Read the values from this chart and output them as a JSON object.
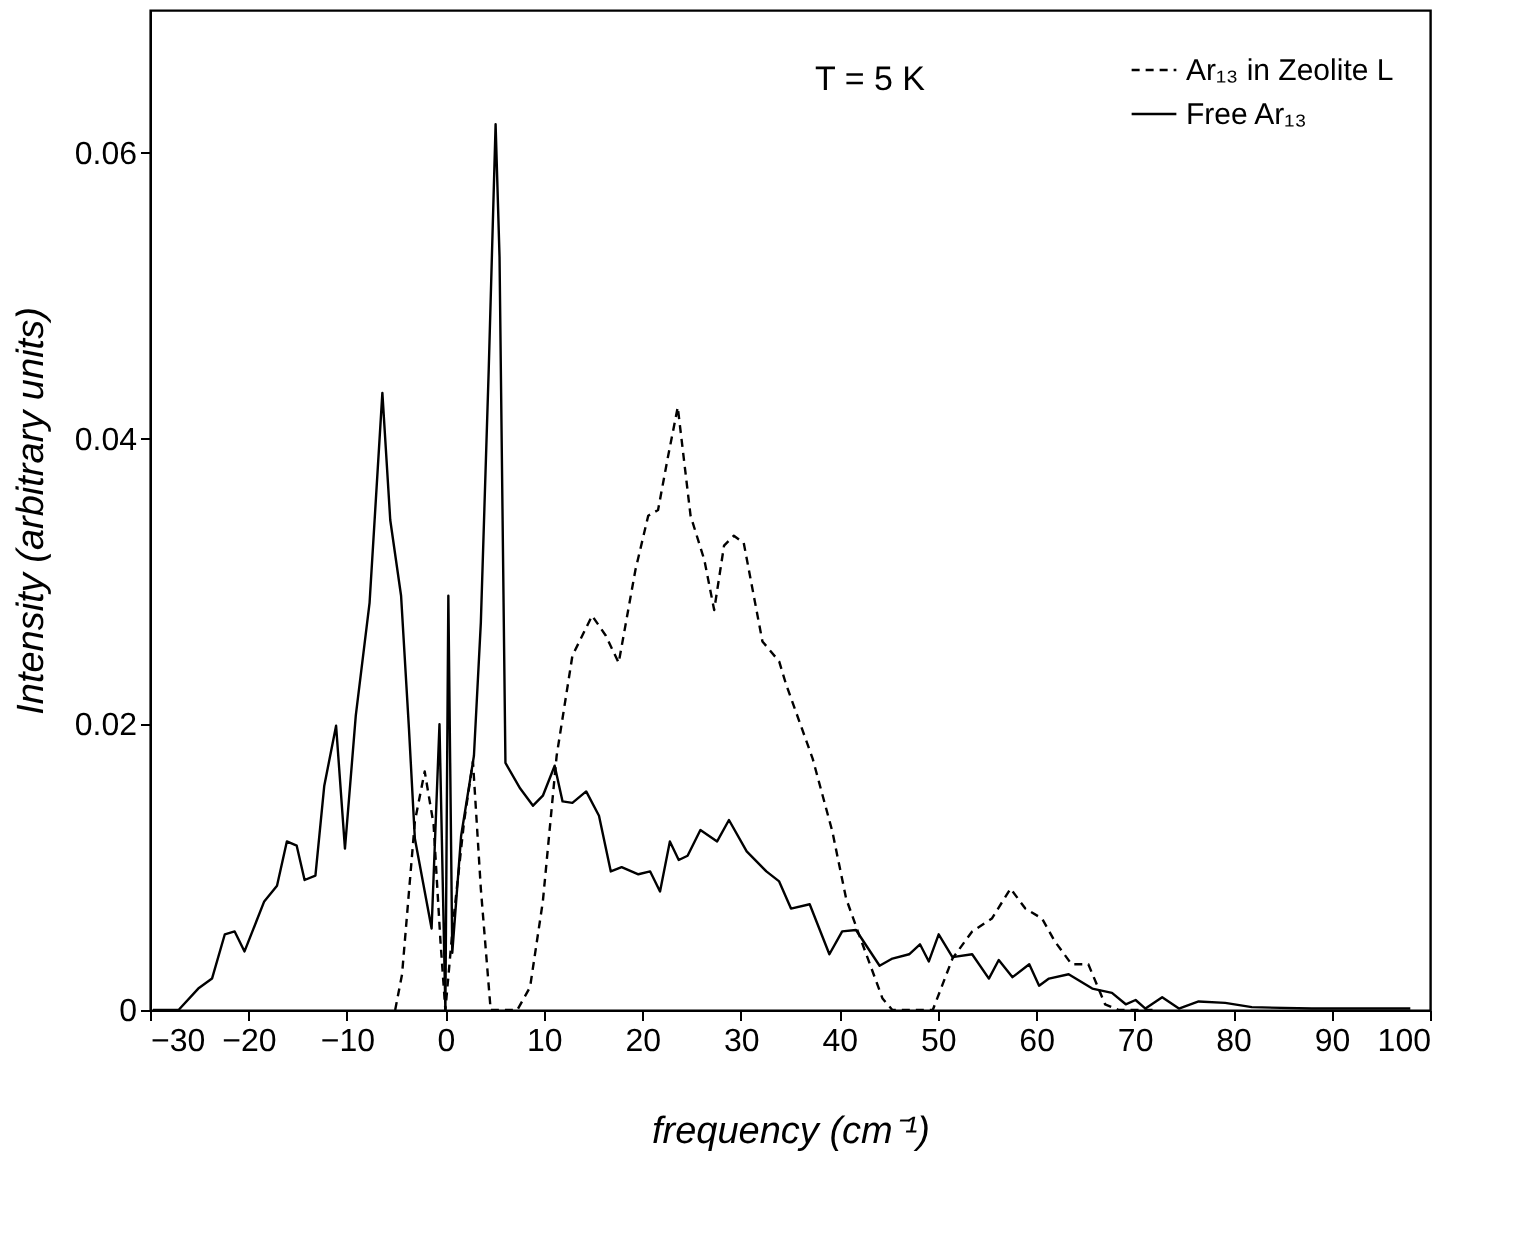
{
  "chart_data": {
    "type": "line",
    "xlabel": "frequency (cm⁻¹)",
    "ylabel": "Intensity (arbitrary units)",
    "annotations": [
      "T = 5 K"
    ],
    "xlim": [
      -30,
      100
    ],
    "xticks": [
      -30,
      -20,
      -10,
      0,
      10,
      20,
      30,
      40,
      50,
      60,
      70,
      80,
      90,
      100
    ],
    "ylim": [
      0,
      0.07
    ],
    "yticks": [
      0,
      0.02,
      0.04,
      0.06
    ],
    "grid": false,
    "legend": "top right",
    "series": [
      {
        "name": "Ar₁₃ in Zeolite L",
        "color": "#000000",
        "line_style": "dashed",
        "x": [
          -5.1,
          -4.4,
          -3.1,
          -2.1,
          -1.2,
          -0.5,
          0,
          0.8,
          1.9,
          2.8,
          3.6,
          4.6,
          7.3,
          8.6,
          9.9,
          11.3,
          12.9,
          14.9,
          16.3,
          17.6,
          19.3,
          20.6,
          21.6,
          22.6,
          23.6,
          24.9,
          26.3,
          27.3,
          28.3,
          29.3,
          30.3,
          32.2,
          33.9,
          34.6,
          37.3,
          39.3,
          40.7,
          42,
          44.4,
          45.4,
          49.5,
          51.5,
          53.5,
          55.5,
          57.4,
          58.9,
          60.6,
          61.9,
          63.6,
          65.3,
          67,
          68.4,
          72
        ],
        "values": [
          0,
          0.0025,
          0.0132,
          0.0167,
          0.013,
          0.0048,
          0,
          0.0062,
          0.0132,
          0.0174,
          0.0085,
          0,
          0,
          0.0016,
          0.0076,
          0.0178,
          0.0248,
          0.0276,
          0.0262,
          0.0243,
          0.0308,
          0.0346,
          0.035,
          0.0387,
          0.0422,
          0.0346,
          0.0315,
          0.028,
          0.0325,
          0.0332,
          0.0327,
          0.0258,
          0.0244,
          0.0228,
          0.0176,
          0.0125,
          0.0078,
          0.0053,
          0.0008,
          0,
          0,
          0.0036,
          0.0055,
          0.0064,
          0.0085,
          0.0071,
          0.0064,
          0.0048,
          0.0032,
          0.0032,
          0.0004,
          0,
          0
        ]
      },
      {
        "name": "Free Ar₁₃",
        "color": "#000000",
        "line_style": "solid",
        "x": [
          -29.7,
          -27.1,
          -25.1,
          -23.7,
          -22.4,
          -21.4,
          -20.4,
          -18.4,
          -17.1,
          -16.1,
          -15.1,
          -14.3,
          -13.2,
          -12.3,
          -11.1,
          -10.2,
          -9.1,
          -7.7,
          -6.4,
          -5.6,
          -4.5,
          -3.7,
          -3.1,
          -1.4,
          -0.6,
          0,
          0.3,
          0.7,
          1.6,
          2.9,
          3.6,
          4.4,
          5.1,
          5.5,
          6.1,
          7.6,
          8.9,
          9.9,
          11.1,
          11.9,
          12.9,
          14.3,
          15.6,
          16.8,
          17.9,
          19.6,
          20.8,
          21.8,
          22.8,
          23.7,
          24.6,
          25.9,
          27.6,
          28.8,
          30.6,
          32.6,
          33.9,
          35.1,
          37,
          39,
          40.3,
          41.7,
          44.1,
          45.4,
          47.1,
          48.2,
          49.1,
          50.1,
          51.5,
          53.5,
          55.2,
          56.2,
          57.6,
          59.3,
          60.3,
          61.3,
          63.3,
          65.7,
          67.7,
          69.1,
          70.1,
          71.1,
          72.8,
          74.5,
          76.5,
          79.2,
          81.9,
          88,
          98
        ],
        "values": [
          0,
          0,
          0.0015,
          0.0022,
          0.0053,
          0.0055,
          0.0041,
          0.0076,
          0.0087,
          0.0118,
          0.0115,
          0.0091,
          0.0094,
          0.0157,
          0.0199,
          0.0113,
          0.0206,
          0.0285,
          0.0432,
          0.0343,
          0.029,
          0.0197,
          0.012,
          0.0057,
          0.02,
          0,
          0.029,
          0.004,
          0.0122,
          0.0178,
          0.0271,
          0.0448,
          0.062,
          0.0527,
          0.0173,
          0.0155,
          0.0143,
          0.015,
          0.0171,
          0.0146,
          0.0145,
          0.0153,
          0.0136,
          0.0097,
          0.01,
          0.0095,
          0.0097,
          0.0083,
          0.0118,
          0.0105,
          0.0108,
          0.0126,
          0.0118,
          0.0133,
          0.0111,
          0.0097,
          0.009,
          0.0071,
          0.0074,
          0.0039,
          0.0055,
          0.0056,
          0.0031,
          0.0036,
          0.0039,
          0.0046,
          0.0034,
          0.0053,
          0.0037,
          0.0039,
          0.0022,
          0.0035,
          0.0023,
          0.0032,
          0.0017,
          0.0022,
          0.0025,
          0.0015,
          0.0012,
          0.0004,
          0.0007,
          0.0001,
          0.0009,
          0.0001,
          0.0006,
          0.0005,
          0.0002,
          0.0001,
          0.0001
        ]
      }
    ]
  }
}
